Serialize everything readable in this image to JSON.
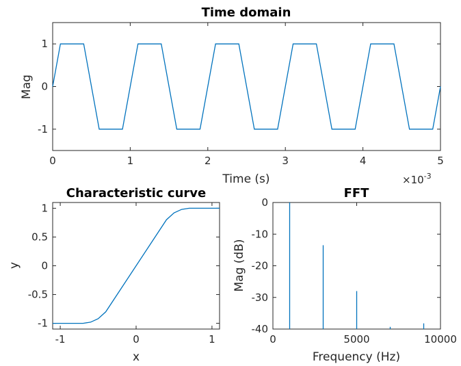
{
  "colors": {
    "series": "#0072BD",
    "axes": "#262626",
    "background": "#ffffff"
  },
  "chart_data": [
    {
      "type": "line",
      "title": "Time domain",
      "xlabel": "Time (s)",
      "ylabel": "Mag",
      "x_exponent_label": "×10",
      "x_exponent_power": "-3",
      "xlim": [
        0,
        5
      ],
      "ylim": [
        -1.5,
        1.5
      ],
      "xticks": [
        0,
        1,
        2,
        3,
        4,
        5
      ],
      "xtick_labels": [
        "0",
        "1",
        "2",
        "3",
        "4",
        "5"
      ],
      "yticks": [
        1,
        0,
        -1
      ],
      "ytick_labels": [
        "1",
        "0",
        "-1"
      ],
      "grid": false,
      "series": [
        {
          "x": [
            0,
            0.1,
            0.4,
            0.6,
            0.9,
            1.1,
            1.4,
            1.6,
            1.9,
            2.1,
            2.4,
            2.6,
            2.9,
            3.1,
            3.4,
            3.6,
            3.9,
            4.1,
            4.4,
            4.6,
            4.9,
            5.0
          ],
          "y": [
            0,
            1,
            1,
            -1,
            -1,
            1,
            1,
            -1,
            -1,
            1,
            1,
            -1,
            -1,
            1,
            1,
            -1,
            -1,
            1,
            1,
            -1,
            -1,
            0
          ]
        }
      ]
    },
    {
      "type": "line",
      "title": "Characteristic curve",
      "xlabel": "x",
      "ylabel": "y",
      "xlim": [
        -1.1,
        1.1
      ],
      "ylim": [
        -1.1,
        1.1
      ],
      "xticks": [
        -1,
        0,
        1
      ],
      "xtick_labels": [
        "-1",
        "0",
        "1"
      ],
      "yticks": [
        1,
        0.5,
        0,
        -0.5,
        -1
      ],
      "ytick_labels": [
        "1",
        "0.5",
        "0",
        "-0.5",
        "-1"
      ],
      "grid": false,
      "series": [
        {
          "x": [
            -1.1,
            -0.7,
            -0.6,
            -0.5,
            -0.4,
            0.4,
            0.5,
            0.6,
            0.7,
            1.1
          ],
          "y": [
            -1,
            -1,
            -0.98,
            -0.92,
            -0.8,
            0.8,
            0.92,
            0.98,
            1,
            1
          ]
        }
      ]
    },
    {
      "type": "bar",
      "title": "FFT",
      "xlabel": "Frequency (Hz)",
      "ylabel": "Mag (dB)",
      "xlim": [
        0,
        10000
      ],
      "ylim": [
        -40,
        0
      ],
      "xticks": [
        0,
        5000,
        10000
      ],
      "xtick_labels": [
        "0",
        "5000",
        "10000"
      ],
      "yticks": [
        0,
        -10,
        -20,
        -30,
        -40
      ],
      "ytick_labels": [
        "0",
        "-10",
        "-20",
        "-30",
        "-40"
      ],
      "grid": false,
      "stems": [
        {
          "x": 1000,
          "y": 0
        },
        {
          "x": 3000,
          "y": -13.5
        },
        {
          "x": 5000,
          "y": -28
        },
        {
          "x": 7000,
          "y": -39.3
        },
        {
          "x": 9000,
          "y": -38.2
        }
      ]
    }
  ]
}
